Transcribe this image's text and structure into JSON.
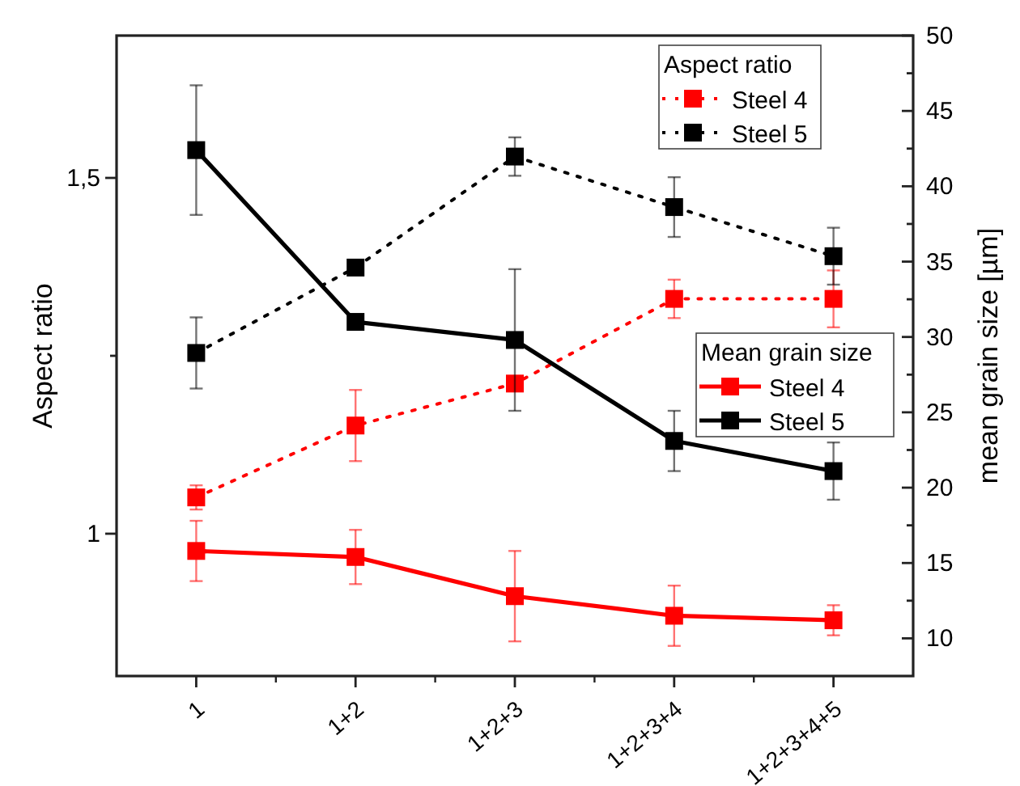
{
  "chart_data": {
    "type": "line",
    "ylabel": "Aspect ratio",
    "y2label": "mean grain size [µm]",
    "legend_title": "Aspect ratio",
    "annotations": [
      "Mean grain size"
    ],
    "categories": [
      "1",
      "1+2",
      "1+2+3",
      "1+2+3+4",
      "1+2+3+4+5"
    ],
    "ylim": [
      0.8,
      1.7
    ],
    "yticks": [
      1,
      {
        "value": 1.25,
        "label": null
      },
      {
        "value": 1.5,
        "label": "1,5"
      }
    ],
    "y2lim": [
      7.5,
      50
    ],
    "y2ticks": [
      10,
      {
        "value": 12.5,
        "label": null
      },
      15,
      {
        "value": 17.5,
        "label": null
      },
      20,
      {
        "value": 22.5,
        "label": null
      },
      25,
      {
        "value": 27.5,
        "label": null
      },
      30,
      {
        "value": 32.5,
        "label": null
      },
      35,
      {
        "value": 37.5,
        "label": null
      },
      40,
      {
        "value": 42.5,
        "label": null
      },
      45,
      {
        "value": 47.5,
        "label": null
      },
      50
    ],
    "marker": "square",
    "legend": "top right",
    "grid": false,
    "series": [
      {
        "name": "Steel 4",
        "color": "#ff0000",
        "line_style": "dotted",
        "values": [
          1.051,
          1.152,
          1.211,
          1.33,
          1.33
        ],
        "errors": [
          0.017,
          0.05,
          0.01,
          0.027,
          0.04
        ]
      },
      {
        "name": "Steel 5",
        "color": "#000000",
        "line_style": "dotted",
        "values": [
          1.254,
          1.374,
          1.53,
          1.459,
          1.39
        ],
        "errors": [
          0.05,
          0.01,
          0.027,
          0.042,
          0.04
        ]
      },
      {
        "name": "Steel 4",
        "color": "#ff0000",
        "line_style": "solid",
        "axis": "y2",
        "values": [
          15.8,
          15.4,
          12.8,
          11.5,
          11.2
        ],
        "errors": [
          2,
          1.8,
          3,
          2,
          1
        ]
      },
      {
        "name": "Steel 5",
        "color": "#000000",
        "line_style": "solid",
        "axis": "y2",
        "values": [
          42.4,
          31.0,
          29.8,
          23.1,
          21.1
        ],
        "errors": [
          4.3,
          0.5,
          4.7,
          2,
          1.9
        ]
      }
    ]
  }
}
